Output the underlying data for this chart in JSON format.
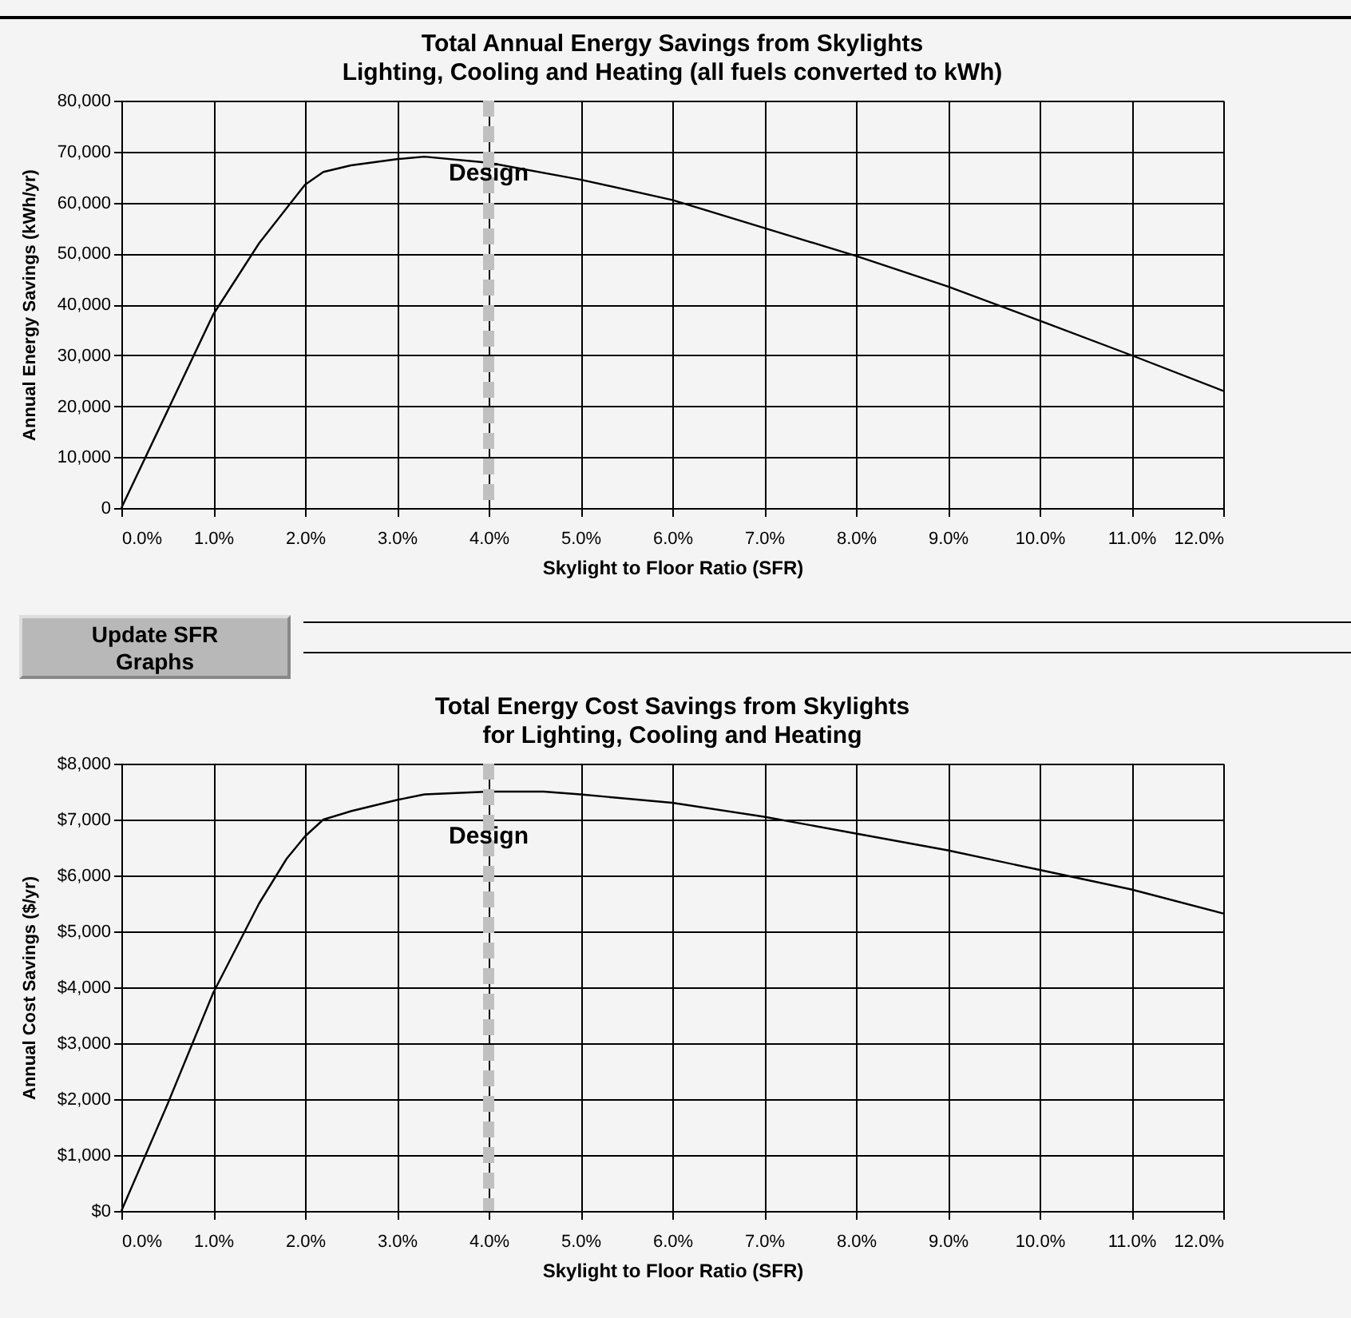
{
  "chart_data": [
    {
      "type": "line",
      "title": "Total Annual Energy Savings from Skylights",
      "subtitle": "Lighting, Cooling and Heating (all fuels converted to kWh)",
      "xlabel": "Skylight to Floor Ratio (SFR)",
      "ylabel": "Annual Energy Savings (kWh/yr)",
      "x": [
        0,
        0.5,
        1,
        1.5,
        2,
        2.2,
        2.5,
        3,
        3.3,
        4,
        5,
        6,
        7,
        8,
        9,
        10,
        11,
        12
      ],
      "series": [
        {
          "color": "#000000",
          "values": [
            0,
            19000,
            38000,
            52000,
            63500,
            66000,
            67300,
            68500,
            69000,
            67800,
            64500,
            60500,
            55000,
            49500,
            43500,
            36800,
            30000,
            23000
          ]
        }
      ],
      "xlim": [
        0,
        12
      ],
      "xticks": [
        {
          "value": 0,
          "label": "0.0%"
        },
        {
          "value": 1,
          "label": "1.0%"
        },
        {
          "value": 2,
          "label": "2.0%"
        },
        {
          "value": 3,
          "label": "3.0%"
        },
        {
          "value": 4,
          "label": "4.0%"
        },
        {
          "value": 5,
          "label": "5.0%"
        },
        {
          "value": 6,
          "label": "6.0%"
        },
        {
          "value": 7,
          "label": "7.0%"
        },
        {
          "value": 8,
          "label": "8.0%"
        },
        {
          "value": 9,
          "label": "9.0%"
        },
        {
          "value": 10,
          "label": "10.0%"
        },
        {
          "value": 11,
          "label": "11.0%"
        },
        {
          "value": 12,
          "label": "12.0%"
        }
      ],
      "ylim": [
        0,
        80000
      ],
      "yticks": [
        0,
        {
          "value": 10000,
          "label": "10,000"
        },
        {
          "value": 20000,
          "label": "20,000"
        },
        {
          "value": 30000,
          "label": "30,000"
        },
        {
          "value": 40000,
          "label": "40,000"
        },
        {
          "value": 50000,
          "label": "50,000"
        },
        {
          "value": 60000,
          "label": "60,000"
        },
        {
          "value": 70000,
          "label": "70,000"
        },
        {
          "value": 80000,
          "label": "80,000"
        }
      ],
      "ref_lines": [
        {
          "axis": "x",
          "value": 4,
          "label": "Design",
          "color": "#c0c0c0",
          "line_style": "dashed"
        }
      ],
      "annotations": [
        "Update SFR Graphs"
      ],
      "grid": true,
      "marker": "none",
      "line_style": "solid"
    },
    {
      "type": "line",
      "title": "Total Energy Cost Savings from Skylights",
      "subtitle": "for Lighting, Cooling and Heating",
      "xlabel": "Skylight to Floor Ratio (SFR)",
      "ylabel": "Annual Cost Savings ($/yr)",
      "x": [
        0,
        0.5,
        1,
        1.5,
        1.8,
        2,
        2.2,
        2.5,
        3,
        3.3,
        4,
        4.6,
        5,
        6,
        7,
        8,
        9,
        10,
        11,
        12
      ],
      "series": [
        {
          "color": "#000000",
          "values": [
            0,
            1900,
            3900,
            5500,
            6300,
            6700,
            7000,
            7150,
            7350,
            7450,
            7500,
            7500,
            7450,
            7300,
            7050,
            6750,
            6450,
            6100,
            5750,
            5320
          ]
        }
      ],
      "xlim": [
        0,
        12
      ],
      "xticks": [
        {
          "value": 0,
          "label": "0.0%"
        },
        {
          "value": 1,
          "label": "1.0%"
        },
        {
          "value": 2,
          "label": "2.0%"
        },
        {
          "value": 3,
          "label": "3.0%"
        },
        {
          "value": 4,
          "label": "4.0%"
        },
        {
          "value": 5,
          "label": "5.0%"
        },
        {
          "value": 6,
          "label": "6.0%"
        },
        {
          "value": 7,
          "label": "7.0%"
        },
        {
          "value": 8,
          "label": "8.0%"
        },
        {
          "value": 9,
          "label": "9.0%"
        },
        {
          "value": 10,
          "label": "10.0%"
        },
        {
          "value": 11,
          "label": "11.0%"
        },
        {
          "value": 12,
          "label": "12.0%"
        }
      ],
      "ylim": [
        0,
        8000
      ],
      "yticks": [
        {
          "value": 0,
          "label": "$0"
        },
        {
          "value": 1000,
          "label": "$1,000"
        },
        {
          "value": 2000,
          "label": "$2,000"
        },
        {
          "value": 3000,
          "label": "$3,000"
        },
        {
          "value": 4000,
          "label": "$4,000"
        },
        {
          "value": 5000,
          "label": "$5,000"
        },
        {
          "value": 6000,
          "label": "$6,000"
        },
        {
          "value": 7000,
          "label": "$7,000"
        },
        {
          "value": 8000,
          "label": "$8,000"
        }
      ],
      "ref_lines": [
        {
          "axis": "x",
          "value": 4,
          "label": "Design",
          "color": "#c0c0c0",
          "line_style": "dashed"
        }
      ],
      "grid": true,
      "marker": "none",
      "line_style": "solid"
    }
  ]
}
